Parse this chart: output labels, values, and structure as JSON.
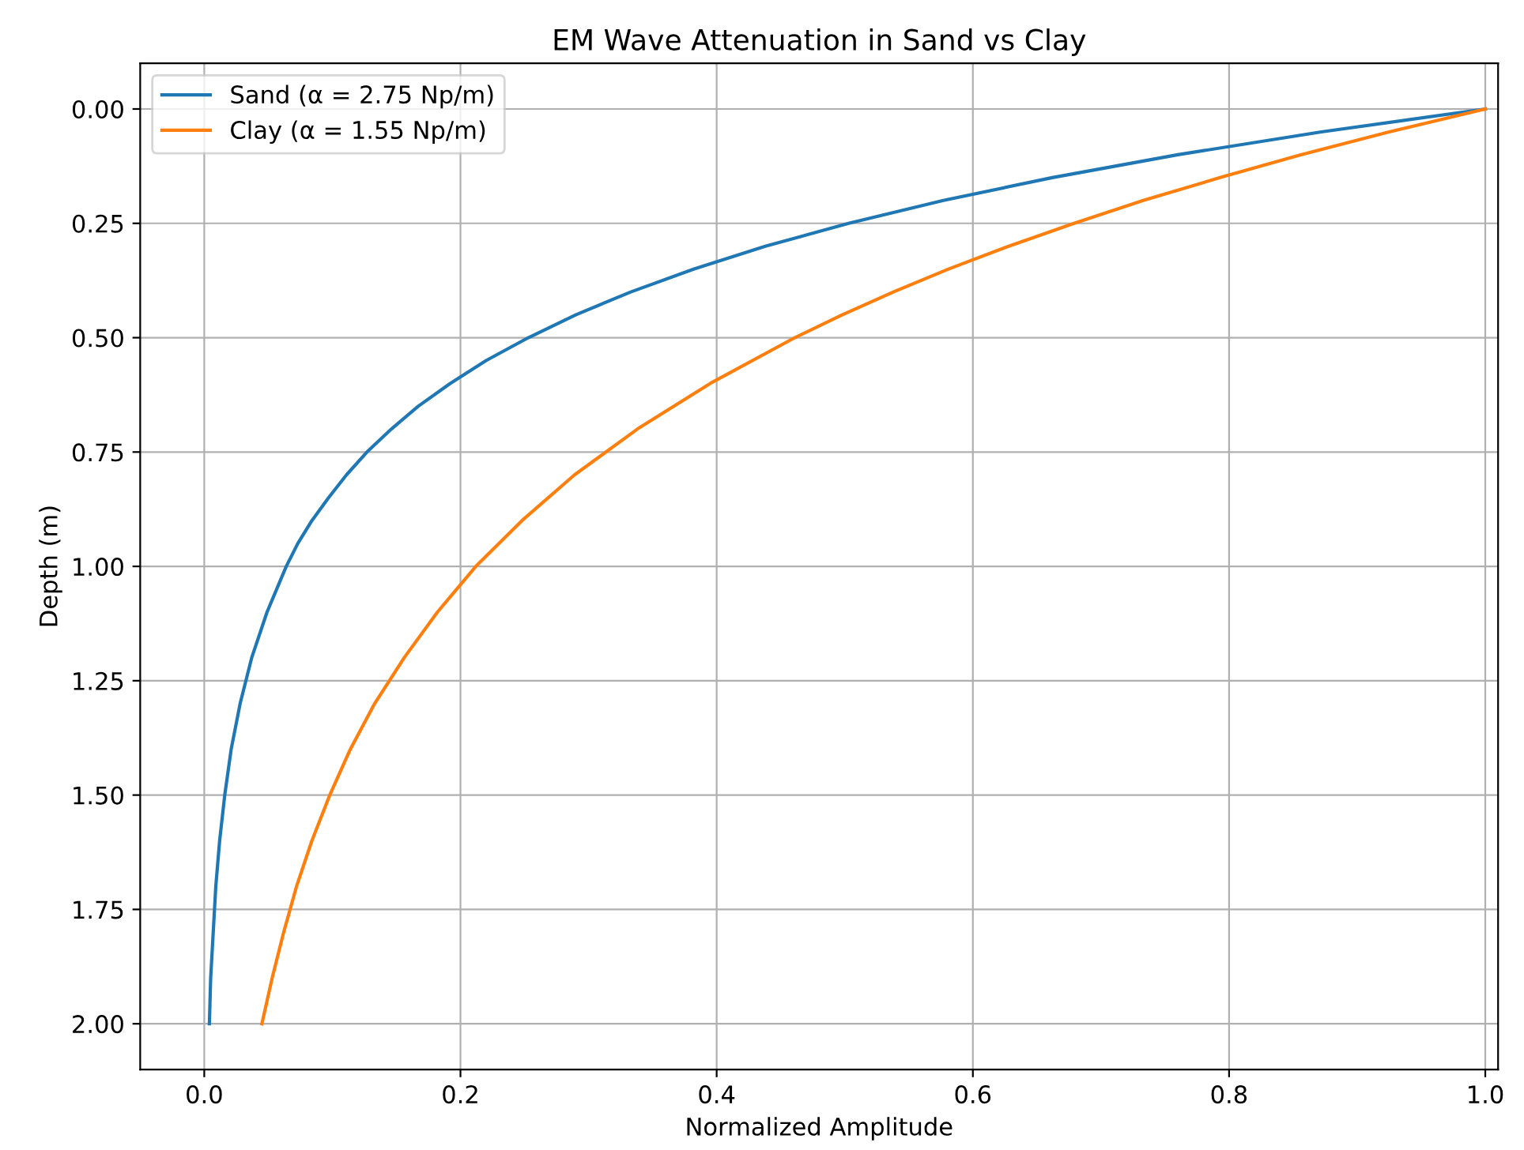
{
  "chart_data": {
    "type": "line",
    "title": "EM Wave Attenuation in Sand vs Clay",
    "xlabel": "Normalized Amplitude",
    "ylabel": "Depth (m)",
    "series": [
      {
        "name": "Sand (α = 2.75 Np/m)",
        "color": "#1f77b4",
        "x": [
          1,
          0.872,
          0.76,
          0.662,
          0.577,
          0.503,
          0.438,
          0.382,
          0.333,
          0.29,
          0.253,
          0.22,
          0.192,
          0.167,
          0.146,
          0.127,
          0.111,
          0.097,
          0.084,
          0.073,
          0.064,
          0.049,
          0.037,
          0.028,
          0.021,
          0.016,
          0.012,
          0.009,
          0.007,
          0.005,
          0.004
        ],
        "values": [
          0,
          0.05,
          0.1,
          0.15,
          0.2,
          0.25,
          0.3,
          0.35,
          0.4,
          0.45,
          0.5,
          0.55,
          0.6,
          0.65,
          0.7,
          0.75,
          0.8,
          0.85,
          0.9,
          0.95,
          1.0,
          1.1,
          1.2,
          1.3,
          1.4,
          1.5,
          1.6,
          1.7,
          1.8,
          1.9,
          2.0
        ]
      },
      {
        "name": "Clay (α = 1.55 Np/m)",
        "color": "#ff7f0e",
        "x": [
          1,
          0.925,
          0.856,
          0.793,
          0.733,
          0.679,
          0.628,
          0.581,
          0.538,
          0.498,
          0.461,
          0.395,
          0.338,
          0.289,
          0.248,
          0.212,
          0.182,
          0.156,
          0.133,
          0.114,
          0.098,
          0.084,
          0.072,
          0.062,
          0.053,
          0.045
        ],
        "values": [
          0,
          0.05,
          0.1,
          0.15,
          0.2,
          0.25,
          0.3,
          0.35,
          0.4,
          0.45,
          0.5,
          0.6,
          0.7,
          0.8,
          0.9,
          1.0,
          1.1,
          1.2,
          1.3,
          1.4,
          1.5,
          1.6,
          1.7,
          1.8,
          1.9,
          2.0
        ]
      }
    ],
    "xlim": [
      -0.05,
      1.01
    ],
    "xticks": [
      {
        "value": 0,
        "label": "0.0"
      },
      {
        "value": 0.2,
        "label": "0.2"
      },
      {
        "value": 0.4,
        "label": "0.4"
      },
      {
        "value": 0.6,
        "label": "0.6"
      },
      {
        "value": 0.8,
        "label": "0.8"
      },
      {
        "value": 1,
        "label": "1.0"
      }
    ],
    "ylim": [
      2.1,
      -0.1
    ],
    "yticks": [
      {
        "value": 0,
        "label": "0.00"
      },
      {
        "value": 0.25,
        "label": "0.25"
      },
      {
        "value": 0.5,
        "label": "0.50"
      },
      {
        "value": 0.75,
        "label": "0.75"
      },
      {
        "value": 1,
        "label": "1.00"
      },
      {
        "value": 1.25,
        "label": "1.25"
      },
      {
        "value": 1.5,
        "label": "1.50"
      },
      {
        "value": 1.75,
        "label": "1.75"
      },
      {
        "value": 2,
        "label": "2.00"
      }
    ],
    "grid": true,
    "legend": "top left",
    "line_style": "solid"
  }
}
